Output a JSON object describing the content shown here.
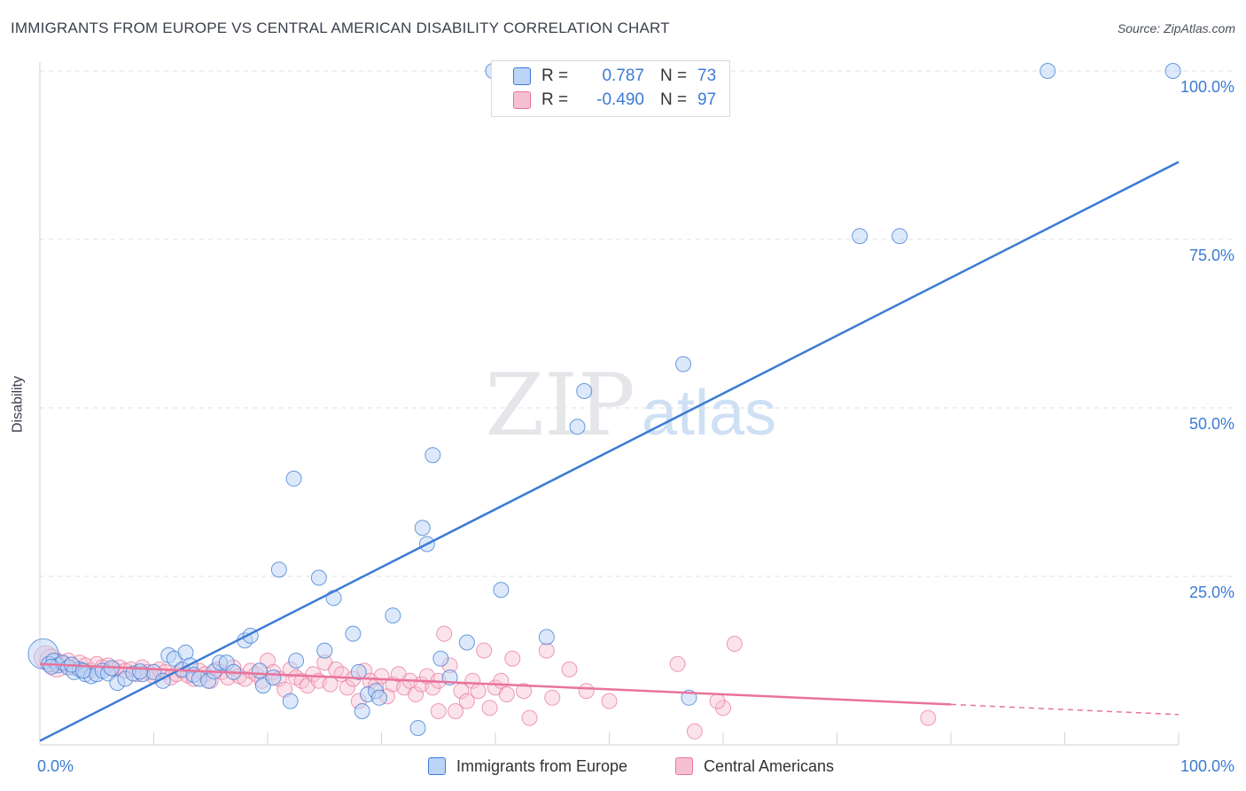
{
  "title": "IMMIGRANTS FROM EUROPE VS CENTRAL AMERICAN DISABILITY CORRELATION CHART",
  "source": "Source: ZipAtlas.com",
  "watermark": {
    "zip": "ZIP",
    "atlas": "atlas"
  },
  "colors": {
    "blue": "#3b7bd4",
    "blue_fill": "#bcd4f5",
    "pink": "#e8739a",
    "pink_fill": "#f7c0d2",
    "grid": "#dcdfe4",
    "axis_text": "#3b7bd4"
  },
  "legend": {
    "rows": [
      {
        "r_label": "R =",
        "r_value": "0.787",
        "n_label": "N =",
        "n_value": "73"
      },
      {
        "r_label": "R =",
        "r_value": "-0.490",
        "n_label": "N =",
        "n_value": "97"
      }
    ]
  },
  "bottom_legend": [
    "Immigrants from Europe",
    "Central Americans"
  ],
  "chart_data": {
    "type": "scatter",
    "title": "IMMIGRANTS FROM EUROPE VS CENTRAL AMERICAN DISABILITY CORRELATION CHART",
    "xlabel": "",
    "ylabel": "Disability",
    "xlim": [
      0,
      100
    ],
    "ylim": [
      0,
      100
    ],
    "x_tick_labels": [
      "0.0%",
      "100.0%"
    ],
    "y_tick_labels": [
      "100.0%",
      "75.0%",
      "50.0%",
      "25.0%"
    ],
    "y_ticks": [
      100,
      75,
      50,
      25
    ],
    "grid": true,
    "series": [
      {
        "name": "Immigrants from Europe",
        "r": 0.787,
        "n": 73,
        "trend": {
          "x": [
            0,
            100
          ],
          "y": [
            0.6,
            86.5
          ],
          "dashed_from": null
        },
        "points": [
          [
            0.3,
            13.5
          ],
          [
            0.8,
            12.0
          ],
          [
            1.2,
            12.5
          ],
          [
            1.6,
            11.8
          ],
          [
            2.0,
            12.2
          ],
          [
            2.5,
            11.5
          ],
          [
            3.0,
            10.8
          ],
          [
            3.5,
            11.2
          ],
          [
            4.0,
            10.5
          ],
          [
            4.5,
            10.2
          ],
          [
            5.0,
            10.5
          ],
          [
            5.5,
            11.0
          ],
          [
            6.0,
            10.6
          ],
          [
            6.8,
            9.2
          ],
          [
            7.5,
            9.8
          ],
          [
            8.2,
            10.6
          ],
          [
            9.0,
            10.5
          ],
          [
            10.0,
            10.8
          ],
          [
            10.8,
            9.5
          ],
          [
            11.3,
            13.3
          ],
          [
            11.8,
            12.8
          ],
          [
            12.5,
            11.2
          ],
          [
            12.8,
            13.7
          ],
          [
            13.2,
            11.8
          ],
          [
            13.5,
            10.4
          ],
          [
            14.0,
            9.8
          ],
          [
            14.8,
            9.5
          ],
          [
            15.3,
            10.9
          ],
          [
            15.8,
            12.2
          ],
          [
            16.4,
            12.2
          ],
          [
            17.0,
            10.8
          ],
          [
            18.0,
            15.5
          ],
          [
            18.5,
            16.2
          ],
          [
            19.3,
            11.0
          ],
          [
            19.6,
            8.8
          ],
          [
            20.5,
            10.0
          ],
          [
            21.0,
            26.0
          ],
          [
            22.0,
            6.5
          ],
          [
            22.3,
            39.5
          ],
          [
            22.5,
            12.5
          ],
          [
            24.5,
            24.8
          ],
          [
            25.0,
            14.0
          ],
          [
            25.8,
            21.8
          ],
          [
            27.5,
            16.5
          ],
          [
            28.0,
            10.8
          ],
          [
            28.8,
            7.5
          ],
          [
            29.5,
            8.0
          ],
          [
            29.8,
            7.0
          ],
          [
            28.3,
            5.0
          ],
          [
            31.0,
            19.2
          ],
          [
            33.2,
            2.5
          ],
          [
            34.0,
            29.8
          ],
          [
            33.6,
            32.2
          ],
          [
            34.5,
            43.0
          ],
          [
            35.2,
            12.8
          ],
          [
            36.0,
            10.0
          ],
          [
            37.5,
            15.2
          ],
          [
            39.8,
            100.0
          ],
          [
            40.5,
            23.0
          ],
          [
            44.5,
            16.0
          ],
          [
            47.2,
            47.2
          ],
          [
            47.8,
            52.5
          ],
          [
            56.5,
            56.5
          ],
          [
            57.0,
            7.0
          ],
          [
            72.0,
            75.5
          ],
          [
            75.5,
            75.5
          ],
          [
            88.5,
            100.0
          ],
          [
            99.5,
            100.0
          ],
          [
            1.0,
            11.6
          ],
          [
            2.8,
            11.9
          ],
          [
            3.8,
            11.0
          ],
          [
            6.3,
            11.4
          ],
          [
            8.8,
            10.9
          ]
        ]
      },
      {
        "name": "Central Americans",
        "r": -0.49,
        "n": 97,
        "trend": {
          "x": [
            0,
            80
          ],
          "y": [
            12.0,
            6.0
          ],
          "dashed_to": 100,
          "dashed_y": 4.5
        },
        "points": [
          [
            0.5,
            13.0
          ],
          [
            1.0,
            12.5
          ],
          [
            1.5,
            11.8
          ],
          [
            2.0,
            12.0
          ],
          [
            2.5,
            12.5
          ],
          [
            3.0,
            11.5
          ],
          [
            3.5,
            12.2
          ],
          [
            4.0,
            11.8
          ],
          [
            4.5,
            11.0
          ],
          [
            5.0,
            12.0
          ],
          [
            5.5,
            11.5
          ],
          [
            6.0,
            11.8
          ],
          [
            6.5,
            11.2
          ],
          [
            7.0,
            11.5
          ],
          [
            7.5,
            11.0
          ],
          [
            8.0,
            11.2
          ],
          [
            8.5,
            10.5
          ],
          [
            9.0,
            11.5
          ],
          [
            9.5,
            10.8
          ],
          [
            10.0,
            10.2
          ],
          [
            10.5,
            11.2
          ],
          [
            11.0,
            10.8
          ],
          [
            11.5,
            10.0
          ],
          [
            12.0,
            10.5
          ],
          [
            12.5,
            11.0
          ],
          [
            13.0,
            10.3
          ],
          [
            13.5,
            9.8
          ],
          [
            14.0,
            11.0
          ],
          [
            14.5,
            10.5
          ],
          [
            15.0,
            9.5
          ],
          [
            15.5,
            11.2
          ],
          [
            16.0,
            10.8
          ],
          [
            16.5,
            10.0
          ],
          [
            17.0,
            11.5
          ],
          [
            17.5,
            10.2
          ],
          [
            18.0,
            9.8
          ],
          [
            18.5,
            11.0
          ],
          [
            19.0,
            10.5
          ],
          [
            19.5,
            9.5
          ],
          [
            20.0,
            12.5
          ],
          [
            20.5,
            10.8
          ],
          [
            21.0,
            9.8
          ],
          [
            21.5,
            8.2
          ],
          [
            22.0,
            11.2
          ],
          [
            22.5,
            10.0
          ],
          [
            23.0,
            9.5
          ],
          [
            23.5,
            8.8
          ],
          [
            24.0,
            10.5
          ],
          [
            24.5,
            9.5
          ],
          [
            25.0,
            12.2
          ],
          [
            25.5,
            9.0
          ],
          [
            26.0,
            11.2
          ],
          [
            26.5,
            10.5
          ],
          [
            27.0,
            8.5
          ],
          [
            27.5,
            9.8
          ],
          [
            28.0,
            6.5
          ],
          [
            28.5,
            11.0
          ],
          [
            29.0,
            9.5
          ],
          [
            29.5,
            8.8
          ],
          [
            30.0,
            10.2
          ],
          [
            30.5,
            7.2
          ],
          [
            31.0,
            9.0
          ],
          [
            31.5,
            10.5
          ],
          [
            32.0,
            8.5
          ],
          [
            32.5,
            9.5
          ],
          [
            33.0,
            7.5
          ],
          [
            33.5,
            9.0
          ],
          [
            34.0,
            10.2
          ],
          [
            34.5,
            8.5
          ],
          [
            35.0,
            9.5
          ],
          [
            35.5,
            16.5
          ],
          [
            36.0,
            11.8
          ],
          [
            36.5,
            5.0
          ],
          [
            37.0,
            8.0
          ],
          [
            37.5,
            6.5
          ],
          [
            38.0,
            9.5
          ],
          [
            38.5,
            8.0
          ],
          [
            39.0,
            14.0
          ],
          [
            39.5,
            5.5
          ],
          [
            40.0,
            8.5
          ],
          [
            40.5,
            9.5
          ],
          [
            41.0,
            7.5
          ],
          [
            41.5,
            12.8
          ],
          [
            42.5,
            8.0
          ],
          [
            43.0,
            4.0
          ],
          [
            45.0,
            7.0
          ],
          [
            46.5,
            11.2
          ],
          [
            48.0,
            8.0
          ],
          [
            50.0,
            6.5
          ],
          [
            56.0,
            12.0
          ],
          [
            57.5,
            2.0
          ],
          [
            60.0,
            5.5
          ],
          [
            61.0,
            15.0
          ],
          [
            78.0,
            4.0
          ],
          [
            59.5,
            6.5
          ],
          [
            44.5,
            14.0
          ],
          [
            35.0,
            5.0
          ]
        ]
      }
    ]
  }
}
